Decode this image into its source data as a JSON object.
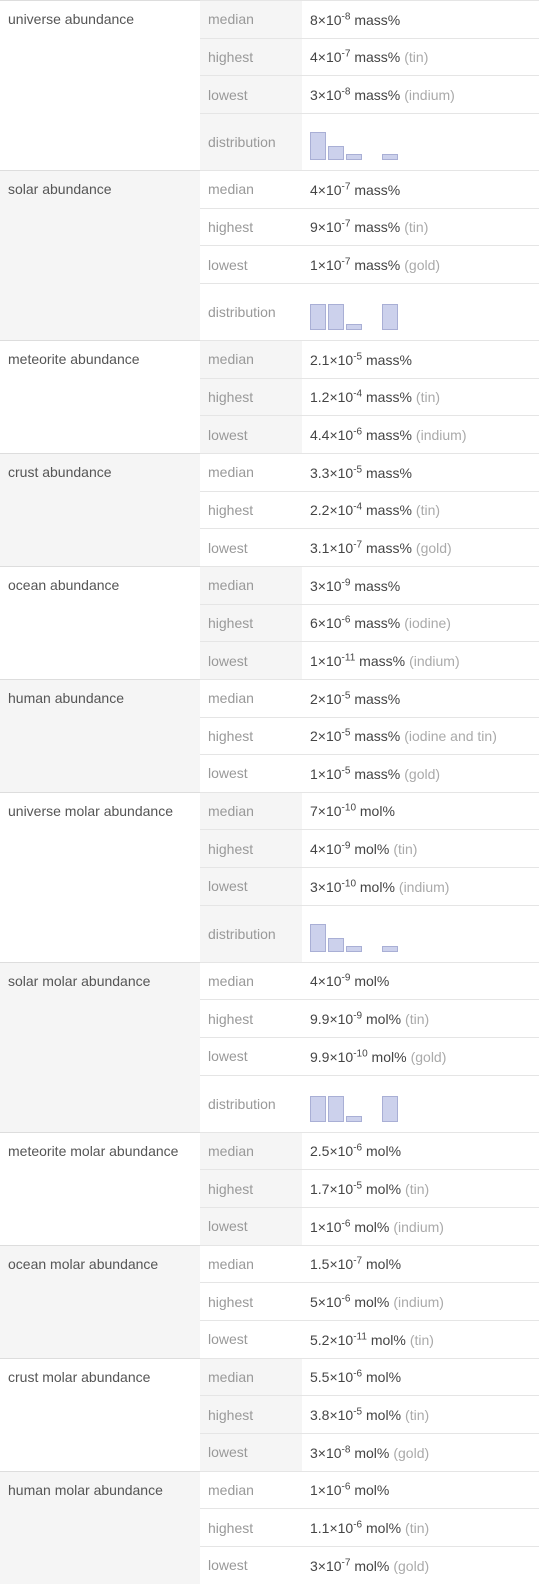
{
  "bar_color": "#ccd1ec",
  "bar_border": "#a9afd5",
  "groups": [
    {
      "name": "universe abundance",
      "alt": false,
      "rows": [
        {
          "stat": "median",
          "coef": "8",
          "exp": "-8",
          "unit": "mass%",
          "note": ""
        },
        {
          "stat": "highest",
          "coef": "4",
          "exp": "-7",
          "unit": "mass%",
          "note": "(tin)"
        },
        {
          "stat": "lowest",
          "coef": "3",
          "exp": "-8",
          "unit": "mass%",
          "note": "(indium)"
        },
        {
          "stat": "distribution",
          "chart": [
            28,
            14,
            6,
            0,
            6
          ]
        }
      ]
    },
    {
      "name": "solar abundance",
      "alt": true,
      "rows": [
        {
          "stat": "median",
          "coef": "4",
          "exp": "-7",
          "unit": "mass%",
          "note": ""
        },
        {
          "stat": "highest",
          "coef": "9",
          "exp": "-7",
          "unit": "mass%",
          "note": "(tin)"
        },
        {
          "stat": "lowest",
          "coef": "1",
          "exp": "-7",
          "unit": "mass%",
          "note": "(gold)"
        },
        {
          "stat": "distribution",
          "chart": [
            26,
            26,
            6,
            0,
            26
          ]
        }
      ]
    },
    {
      "name": "meteorite abundance",
      "alt": false,
      "rows": [
        {
          "stat": "median",
          "coef": "2.1",
          "exp": "-5",
          "unit": "mass%",
          "note": ""
        },
        {
          "stat": "highest",
          "coef": "1.2",
          "exp": "-4",
          "unit": "mass%",
          "note": "(tin)"
        },
        {
          "stat": "lowest",
          "coef": "4.4",
          "exp": "-6",
          "unit": "mass%",
          "note": "(indium)"
        }
      ]
    },
    {
      "name": "crust abundance",
      "alt": true,
      "rows": [
        {
          "stat": "median",
          "coef": "3.3",
          "exp": "-5",
          "unit": "mass%",
          "note": ""
        },
        {
          "stat": "highest",
          "coef": "2.2",
          "exp": "-4",
          "unit": "mass%",
          "note": "(tin)"
        },
        {
          "stat": "lowest",
          "coef": "3.1",
          "exp": "-7",
          "unit": "mass%",
          "note": "(gold)"
        }
      ]
    },
    {
      "name": "ocean abundance",
      "alt": false,
      "rows": [
        {
          "stat": "median",
          "coef": "3",
          "exp": "-9",
          "unit": "mass%",
          "note": ""
        },
        {
          "stat": "highest",
          "coef": "6",
          "exp": "-6",
          "unit": "mass%",
          "note": "(iodine)"
        },
        {
          "stat": "lowest",
          "coef": "1",
          "exp": "-11",
          "unit": "mass%",
          "note": "(indium)"
        }
      ]
    },
    {
      "name": "human abundance",
      "alt": true,
      "rows": [
        {
          "stat": "median",
          "coef": "2",
          "exp": "-5",
          "unit": "mass%",
          "note": ""
        },
        {
          "stat": "highest",
          "coef": "2",
          "exp": "-5",
          "unit": "mass%",
          "note": "(iodine and tin)"
        },
        {
          "stat": "lowest",
          "coef": "1",
          "exp": "-5",
          "unit": "mass%",
          "note": "(gold)"
        }
      ]
    },
    {
      "name": "universe molar abundance",
      "alt": false,
      "rows": [
        {
          "stat": "median",
          "coef": "7",
          "exp": "-10",
          "unit": "mol%",
          "note": ""
        },
        {
          "stat": "highest",
          "coef": "4",
          "exp": "-9",
          "unit": "mol%",
          "note": "(tin)"
        },
        {
          "stat": "lowest",
          "coef": "3",
          "exp": "-10",
          "unit": "mol%",
          "note": "(indium)"
        },
        {
          "stat": "distribution",
          "chart": [
            28,
            14,
            6,
            0,
            6
          ]
        }
      ]
    },
    {
      "name": "solar molar abundance",
      "alt": true,
      "rows": [
        {
          "stat": "median",
          "coef": "4",
          "exp": "-9",
          "unit": "mol%",
          "note": ""
        },
        {
          "stat": "highest",
          "coef": "9.9",
          "exp": "-9",
          "unit": "mol%",
          "note": "(tin)"
        },
        {
          "stat": "lowest",
          "coef": "9.9",
          "exp": "-10",
          "unit": "mol%",
          "note": "(gold)"
        },
        {
          "stat": "distribution",
          "chart": [
            26,
            26,
            6,
            0,
            26
          ]
        }
      ]
    },
    {
      "name": "meteorite molar abundance",
      "alt": false,
      "rows": [
        {
          "stat": "median",
          "coef": "2.5",
          "exp": "-6",
          "unit": "mol%",
          "note": ""
        },
        {
          "stat": "highest",
          "coef": "1.7",
          "exp": "-5",
          "unit": "mol%",
          "note": "(tin)"
        },
        {
          "stat": "lowest",
          "coef": "1",
          "exp": "-6",
          "unit": "mol%",
          "note": "(indium)"
        }
      ]
    },
    {
      "name": "ocean molar abundance",
      "alt": true,
      "rows": [
        {
          "stat": "median",
          "coef": "1.5",
          "exp": "-7",
          "unit": "mol%",
          "note": ""
        },
        {
          "stat": "highest",
          "coef": "5",
          "exp": "-6",
          "unit": "mol%",
          "note": "(indium)"
        },
        {
          "stat": "lowest",
          "coef": "5.2",
          "exp": "-11",
          "unit": "mol%",
          "note": "(tin)"
        }
      ]
    },
    {
      "name": "crust molar abundance",
      "alt": false,
      "rows": [
        {
          "stat": "median",
          "coef": "5.5",
          "exp": "-6",
          "unit": "mol%",
          "note": ""
        },
        {
          "stat": "highest",
          "coef": "3.8",
          "exp": "-5",
          "unit": "mol%",
          "note": "(tin)"
        },
        {
          "stat": "lowest",
          "coef": "3",
          "exp": "-8",
          "unit": "mol%",
          "note": "(gold)"
        }
      ]
    },
    {
      "name": "human molar abundance",
      "alt": true,
      "rows": [
        {
          "stat": "median",
          "coef": "1",
          "exp": "-6",
          "unit": "mol%",
          "note": ""
        },
        {
          "stat": "highest",
          "coef": "1.1",
          "exp": "-6",
          "unit": "mol%",
          "note": "(tin)"
        },
        {
          "stat": "lowest",
          "coef": "3",
          "exp": "-7",
          "unit": "mol%",
          "note": "(gold)"
        }
      ]
    }
  ]
}
